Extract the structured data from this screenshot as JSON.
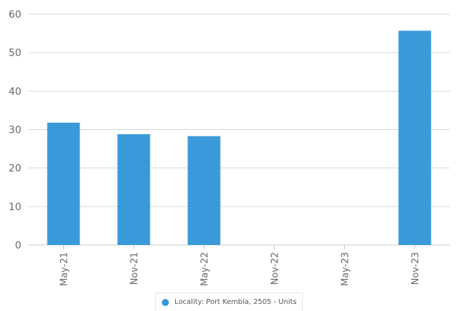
{
  "chart_data": {
    "type": "bar",
    "categories": [
      "May-21",
      "Nov-21",
      "May-22",
      "Nov-22",
      "May-23",
      "Nov-23"
    ],
    "series": [
      {
        "name": "Locality: Port Kembla, 2505 - Units",
        "values": [
          31.8,
          28.8,
          28.3,
          null,
          null,
          55.7
        ],
        "color": "#3a9ad9"
      }
    ],
    "ylim": [
      0,
      60
    ],
    "yticks": [
      0,
      10,
      20,
      30,
      40,
      50,
      60
    ],
    "grid": true,
    "legend_position": "bottom-center"
  }
}
